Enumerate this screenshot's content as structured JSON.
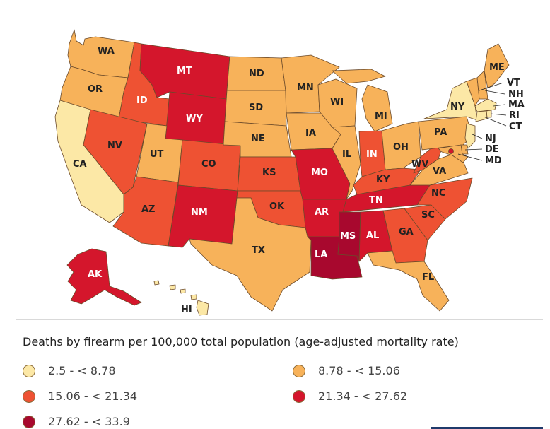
{
  "legend": {
    "title": "Deaths by firearm per 100,000 total population (age-adjusted mortality rate)",
    "bins": [
      {
        "label": "2.5 - < 8.78",
        "color": "#fce8a6"
      },
      {
        "label": "8.78 - < 15.06",
        "color": "#f7b25a"
      },
      {
        "label": "15.06 - < 21.34",
        "color": "#ee5233"
      },
      {
        "label": "21.34 - < 27.62",
        "color": "#d4162c"
      },
      {
        "label": "27.62 - < 33.9",
        "color": "#a8082e"
      }
    ]
  },
  "states": [
    {
      "abbr": "WA",
      "bin": 1
    },
    {
      "abbr": "OR",
      "bin": 1
    },
    {
      "abbr": "CA",
      "bin": 0
    },
    {
      "abbr": "ID",
      "bin": 2
    },
    {
      "abbr": "NV",
      "bin": 2
    },
    {
      "abbr": "MT",
      "bin": 3
    },
    {
      "abbr": "WY",
      "bin": 3
    },
    {
      "abbr": "UT",
      "bin": 1
    },
    {
      "abbr": "AZ",
      "bin": 2
    },
    {
      "abbr": "CO",
      "bin": 2
    },
    {
      "abbr": "NM",
      "bin": 3
    },
    {
      "abbr": "ND",
      "bin": 1
    },
    {
      "abbr": "SD",
      "bin": 1
    },
    {
      "abbr": "NE",
      "bin": 1
    },
    {
      "abbr": "KS",
      "bin": 2
    },
    {
      "abbr": "OK",
      "bin": 2
    },
    {
      "abbr": "TX",
      "bin": 1
    },
    {
      "abbr": "MN",
      "bin": 1
    },
    {
      "abbr": "IA",
      "bin": 1
    },
    {
      "abbr": "MO",
      "bin": 3
    },
    {
      "abbr": "AR",
      "bin": 3
    },
    {
      "abbr": "LA",
      "bin": 4
    },
    {
      "abbr": "WI",
      "bin": 1
    },
    {
      "abbr": "IL",
      "bin": 1
    },
    {
      "abbr": "MI",
      "bin": 1
    },
    {
      "abbr": "IN",
      "bin": 2
    },
    {
      "abbr": "OH",
      "bin": 1
    },
    {
      "abbr": "KY",
      "bin": 2
    },
    {
      "abbr": "TN",
      "bin": 3
    },
    {
      "abbr": "MS",
      "bin": 4
    },
    {
      "abbr": "AL",
      "bin": 3
    },
    {
      "abbr": "GA",
      "bin": 2
    },
    {
      "abbr": "FL",
      "bin": 1
    },
    {
      "abbr": "SC",
      "bin": 2
    },
    {
      "abbr": "NC",
      "bin": 2
    },
    {
      "abbr": "VA",
      "bin": 1
    },
    {
      "abbr": "WV",
      "bin": 2
    },
    {
      "abbr": "PA",
      "bin": 1
    },
    {
      "abbr": "NY",
      "bin": 0
    },
    {
      "abbr": "VT",
      "bin": 1
    },
    {
      "abbr": "NH",
      "bin": 1
    },
    {
      "abbr": "ME",
      "bin": 1
    },
    {
      "abbr": "MA",
      "bin": 0
    },
    {
      "abbr": "RI",
      "bin": 0
    },
    {
      "abbr": "CT",
      "bin": 0
    },
    {
      "abbr": "NJ",
      "bin": 0
    },
    {
      "abbr": "DE",
      "bin": 1
    },
    {
      "abbr": "MD",
      "bin": 1
    },
    {
      "abbr": "DC",
      "bin": 3
    },
    {
      "abbr": "AK",
      "bin": 3
    },
    {
      "abbr": "HI",
      "bin": 0
    }
  ]
}
